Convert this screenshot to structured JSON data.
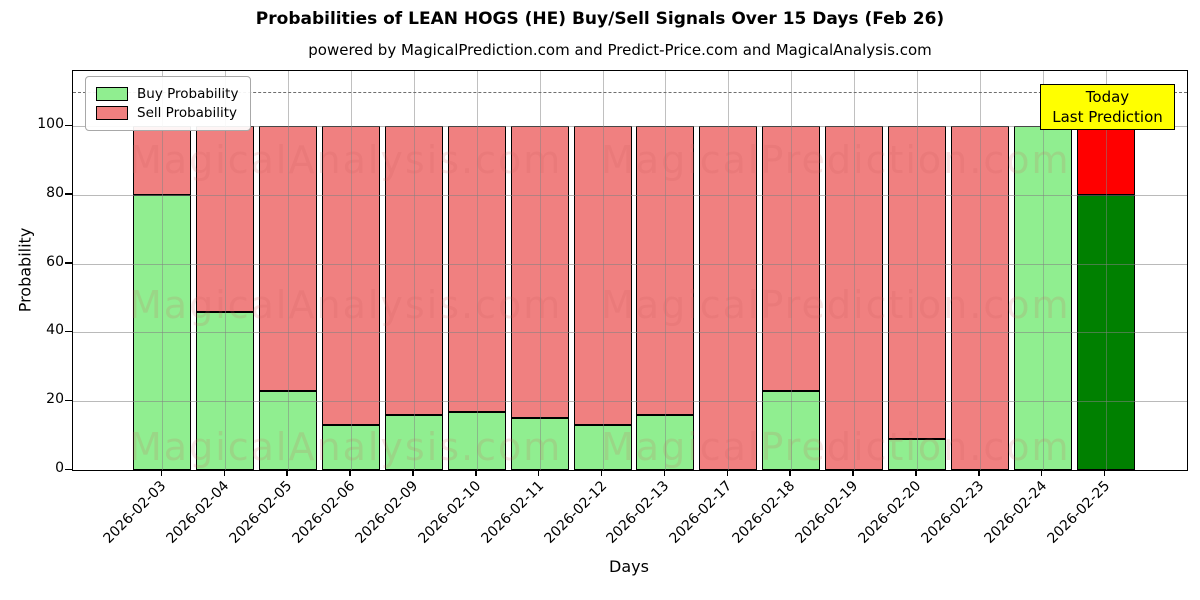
{
  "chart_data": {
    "type": "bar",
    "stacked": true,
    "title": "Probabilities of LEAN HOGS (HE) Buy/Sell Signals Over 15 Days (Feb 26)",
    "subtitle": "powered by MagicalPrediction.com and Predict-Price.com and MagicalAnalysis.com",
    "xlabel": "Days",
    "ylabel": "Probability",
    "categories": [
      "2026-02-03",
      "2026-02-04",
      "2026-02-05",
      "2026-02-06",
      "2026-02-09",
      "2026-02-10",
      "2026-02-11",
      "2026-02-12",
      "2026-02-13",
      "2026-02-17",
      "2026-02-18",
      "2026-02-19",
      "2026-02-20",
      "2026-02-23",
      "2026-02-24",
      "2026-02-25"
    ],
    "series": [
      {
        "name": "Buy Probability",
        "color": "#90EE90",
        "values": [
          80,
          46,
          23,
          13,
          16,
          17,
          15,
          13,
          16,
          0,
          23,
          0,
          9,
          0,
          100,
          80
        ]
      },
      {
        "name": "Sell Probability",
        "color": "#F08080",
        "values": [
          20,
          54,
          77,
          87,
          84,
          83,
          85,
          87,
          84,
          100,
          77,
          100,
          91,
          100,
          0,
          20
        ]
      }
    ],
    "last_bar_colors": {
      "buy": "#008000",
      "sell": "#FF0000"
    },
    "yticks": [
      0,
      20,
      40,
      60,
      80,
      100
    ],
    "ylim": [
      0,
      116
    ],
    "dashed_line_y": 110,
    "grid": true,
    "legend_position": "upper left",
    "annotation": {
      "lines": [
        "Today",
        "Last Prediction"
      ],
      "bg_color": "#FFFF00"
    },
    "watermarks": {
      "left": "MagicalAnalysis.com",
      "right": "MagicalPrediction.com",
      "rows": 3
    }
  }
}
